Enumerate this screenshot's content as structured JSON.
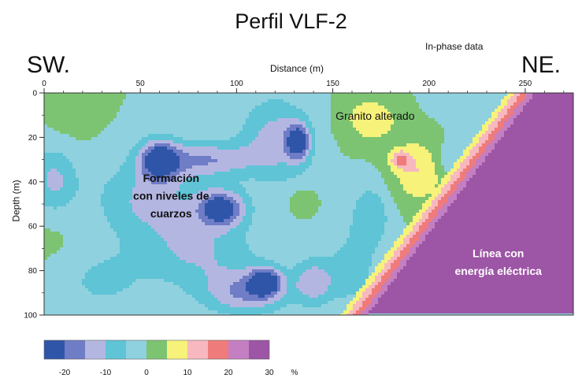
{
  "header": {
    "title": "Perfil VLF-2",
    "subtitle": "In-phase data",
    "left_label": "SW.",
    "right_label": "NE."
  },
  "chart_data": {
    "type": "heatmap",
    "title": "Perfil VLF-2",
    "subtitle": "In-phase data",
    "xlabel": "Distance (m)",
    "ylabel": "Depth (m)",
    "xlim": [
      0,
      275
    ],
    "ylim": [
      0,
      100
    ],
    "x_ticks": [
      0,
      50,
      100,
      150,
      200,
      250
    ],
    "y_ticks": [
      0,
      20,
      40,
      60,
      80,
      100
    ],
    "y_inverted": true,
    "legend": {
      "placement": "bottom-left",
      "unit": "%",
      "tick_labels": [
        "-20",
        "-10",
        "0",
        "10",
        "20",
        "30"
      ],
      "bins": [
        {
          "from": -25,
          "to": -20,
          "color": "#2f55a8"
        },
        {
          "from": -20,
          "to": -15,
          "color": "#6f7cc6"
        },
        {
          "from": -15,
          "to": -10,
          "color": "#b4b6e2"
        },
        {
          "from": -10,
          "to": -5,
          "color": "#5ec4d6"
        },
        {
          "from": -5,
          "to": 0,
          "color": "#8fd1de"
        },
        {
          "from": 0,
          "to": 5,
          "color": "#7cc472"
        },
        {
          "from": 5,
          "to": 10,
          "color": "#f6f27a"
        },
        {
          "from": 10,
          "to": 15,
          "color": "#f7b9bf"
        },
        {
          "from": 15,
          "to": 20,
          "color": "#ef7b7b"
        },
        {
          "from": 20,
          "to": 25,
          "color": "#c47fc2"
        },
        {
          "from": 25,
          "to": 30,
          "color": "#9d55a5"
        }
      ]
    },
    "field": {
      "background": 0,
      "blobs": [
        {
          "x": 15,
          "y": 8,
          "sx": 12,
          "sy": 12,
          "v": 3
        },
        {
          "x": 5,
          "y": 55,
          "sx": 14,
          "sy": 20,
          "v": 2
        },
        {
          "x": 60,
          "y": 30,
          "sx": 10,
          "sy": 9,
          "v": -22
        },
        {
          "x": 55,
          "y": 48,
          "sx": 28,
          "sy": 18,
          "v": -11
        },
        {
          "x": 85,
          "y": 30,
          "sx": 25,
          "sy": 8,
          "v": -14
        },
        {
          "x": 92,
          "y": 52,
          "sx": 12,
          "sy": 8,
          "v": -24
        },
        {
          "x": 80,
          "y": 72,
          "sx": 30,
          "sy": 16,
          "v": -10
        },
        {
          "x": 30,
          "y": 85,
          "sx": 22,
          "sy": 14,
          "v": -6
        },
        {
          "x": 120,
          "y": 20,
          "sx": 18,
          "sy": 18,
          "v": -12
        },
        {
          "x": 132,
          "y": 22,
          "sx": 6,
          "sy": 8,
          "v": -21
        },
        {
          "x": 135,
          "y": 50,
          "sx": 8,
          "sy": 7,
          "v": 8
        },
        {
          "x": 135,
          "y": 50,
          "sx": 18,
          "sy": 15,
          "v": -3
        },
        {
          "x": 105,
          "y": 90,
          "sx": 22,
          "sy": 10,
          "v": -15
        },
        {
          "x": 115,
          "y": 85,
          "sx": 8,
          "sy": 6,
          "v": -23
        },
        {
          "x": 140,
          "y": 85,
          "sx": 10,
          "sy": 10,
          "v": -13
        },
        {
          "x": 170,
          "y": 12,
          "sx": 14,
          "sy": 10,
          "v": 9
        },
        {
          "x": 195,
          "y": 35,
          "sx": 14,
          "sy": 14,
          "v": 10
        },
        {
          "x": 185,
          "y": 30,
          "sx": 5,
          "sy": 4,
          "v": 14
        },
        {
          "x": 210,
          "y": 30,
          "sx": 8,
          "sy": 8,
          "v": -6
        },
        {
          "x": 220,
          "y": 5,
          "sx": 20,
          "sy": 10,
          "v": -2
        },
        {
          "x": 250,
          "y": 2,
          "sx": 15,
          "sy": 6,
          "v": -4
        },
        {
          "x": 170,
          "y": 55,
          "sx": 10,
          "sy": 14,
          "v": -9
        },
        {
          "x": 160,
          "y": 80,
          "sx": 14,
          "sy": 18,
          "v": -7
        },
        {
          "x": 5,
          "y": 40,
          "sx": 12,
          "sy": 15,
          "v": -12
        }
      ],
      "conductor": {
        "boundary": [
          [
            255,
            0
          ],
          [
            280,
            0
          ],
          [
            280,
            100
          ],
          [
            168,
            100
          ]
        ],
        "value": 28,
        "halo_width": 14,
        "halo_values": [
          22,
          17,
          12,
          7
        ]
      }
    },
    "annotations": [
      {
        "text": "Granito alterado",
        "x": 172,
        "y": 12,
        "color": "#111111"
      },
      {
        "text": "Formación",
        "x": 66,
        "y": 40,
        "color": "#111111"
      },
      {
        "text": "con niveles de",
        "x": 66,
        "y": 48,
        "color": "#111111"
      },
      {
        "text": "cuarzos",
        "x": 66,
        "y": 56,
        "color": "#111111"
      },
      {
        "text": "Línea con",
        "x": 236,
        "y": 74,
        "color": "#ffffff"
      },
      {
        "text": "energía eléctrica",
        "x": 236,
        "y": 82,
        "color": "#ffffff"
      }
    ]
  }
}
